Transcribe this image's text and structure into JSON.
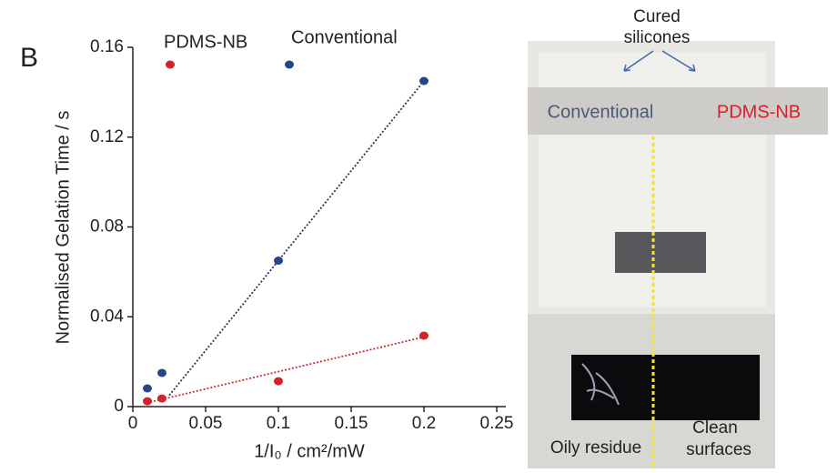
{
  "chart_data": {
    "type": "scatter",
    "panel_label": "B",
    "xlabel": "1/I₀ / cm²/mW",
    "ylabel": "Normalised Gelation Time / s",
    "xlim": [
      0,
      0.25
    ],
    "ylim": [
      0,
      0.16
    ],
    "xticks": [
      0,
      0.05,
      0.1,
      0.15,
      0.2,
      0.25
    ],
    "yticks": [
      0,
      0.04,
      0.08,
      0.12,
      0.16
    ],
    "series": [
      {
        "name": "PDMS-NB",
        "color": "#d3222c",
        "x": [
          0.01,
          0.02,
          0.1,
          0.2
        ],
        "values": [
          0.0024,
          0.0036,
          0.0113,
          0.0316
        ],
        "fit": {
          "x": [
            0.012,
            0.2
          ],
          "values": [
            0.002,
            0.031
          ]
        }
      },
      {
        "name": "Conventional",
        "color": "#27468a",
        "x": [
          0.01,
          0.02,
          0.1,
          0.2
        ],
        "values": [
          0.0081,
          0.015,
          0.065,
          0.145
        ],
        "fit": {
          "x": [
            0.025,
            0.2
          ],
          "values": [
            0.005,
            0.145
          ]
        }
      }
    ]
  },
  "photo": {
    "top_label": [
      "Cured",
      "silicones"
    ],
    "banner_left": "Conventional",
    "banner_right": "PDMS-NB",
    "bottom_left": "Oily residue",
    "bottom_right": [
      "Clean",
      "surfaces"
    ]
  }
}
